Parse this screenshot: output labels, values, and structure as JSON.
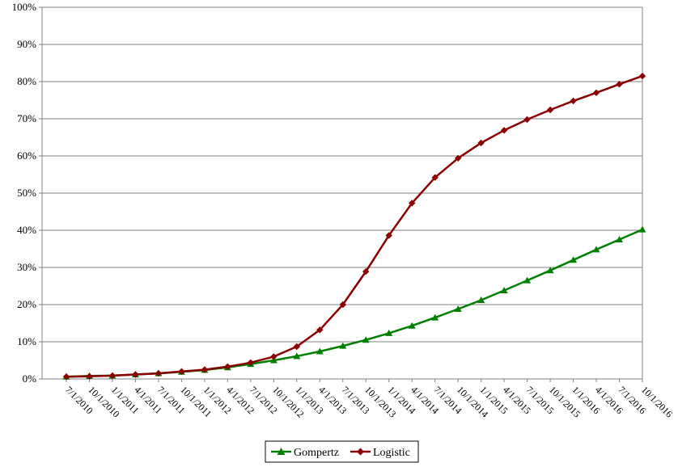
{
  "chart_data": {
    "type": "line",
    "title": "",
    "xlabel": "",
    "ylabel": "",
    "ylim": [
      0,
      100
    ],
    "y_ticks": [
      "0%",
      "10%",
      "20%",
      "30%",
      "40%",
      "50%",
      "60%",
      "70%",
      "80%",
      "90%",
      "100%"
    ],
    "grid": "horizontal",
    "legend_position": "bottom",
    "categories": [
      "7/1/2010",
      "10/1/2010",
      "1/1/2011",
      "4/1/2011",
      "7/1/2011",
      "10/1/2011",
      "1/1/2012",
      "4/1/2012",
      "7/1/2012",
      "10/1/2012",
      "1/1/2013",
      "4/1/2013",
      "7/1/2013",
      "10/1/2013",
      "1/1/2014",
      "4/1/2014",
      "7/1/2014",
      "10/1/2014",
      "1/1/2015",
      "4/1/2015",
      "7/1/2015",
      "10/1/2015",
      "1/1/2016",
      "4/1/2016",
      "7/1/2016",
      "10/1/2016"
    ],
    "series": [
      {
        "name": "Gompertz",
        "color": "#008000",
        "marker": "triangle",
        "values": [
          0.6,
          0.8,
          0.9,
          1.2,
          1.5,
          1.9,
          2.4,
          3.1,
          4.0,
          5.0,
          6.1,
          7.4,
          8.9,
          10.5,
          12.3,
          14.3,
          16.5,
          18.8,
          21.2,
          23.8,
          26.5,
          29.2,
          32.0,
          34.8,
          37.5,
          40.2
        ]
      },
      {
        "name": "Logistic",
        "color": "#8b0000",
        "marker": "diamond",
        "values": [
          0.6,
          0.7,
          0.9,
          1.2,
          1.5,
          2.0,
          2.5,
          3.3,
          4.4,
          6.0,
          8.7,
          13.2,
          20.0,
          28.9,
          38.6,
          47.3,
          54.2,
          59.4,
          63.5,
          66.9,
          69.8,
          72.4,
          74.8,
          77.0,
          79.3,
          81.5
        ]
      }
    ]
  }
}
